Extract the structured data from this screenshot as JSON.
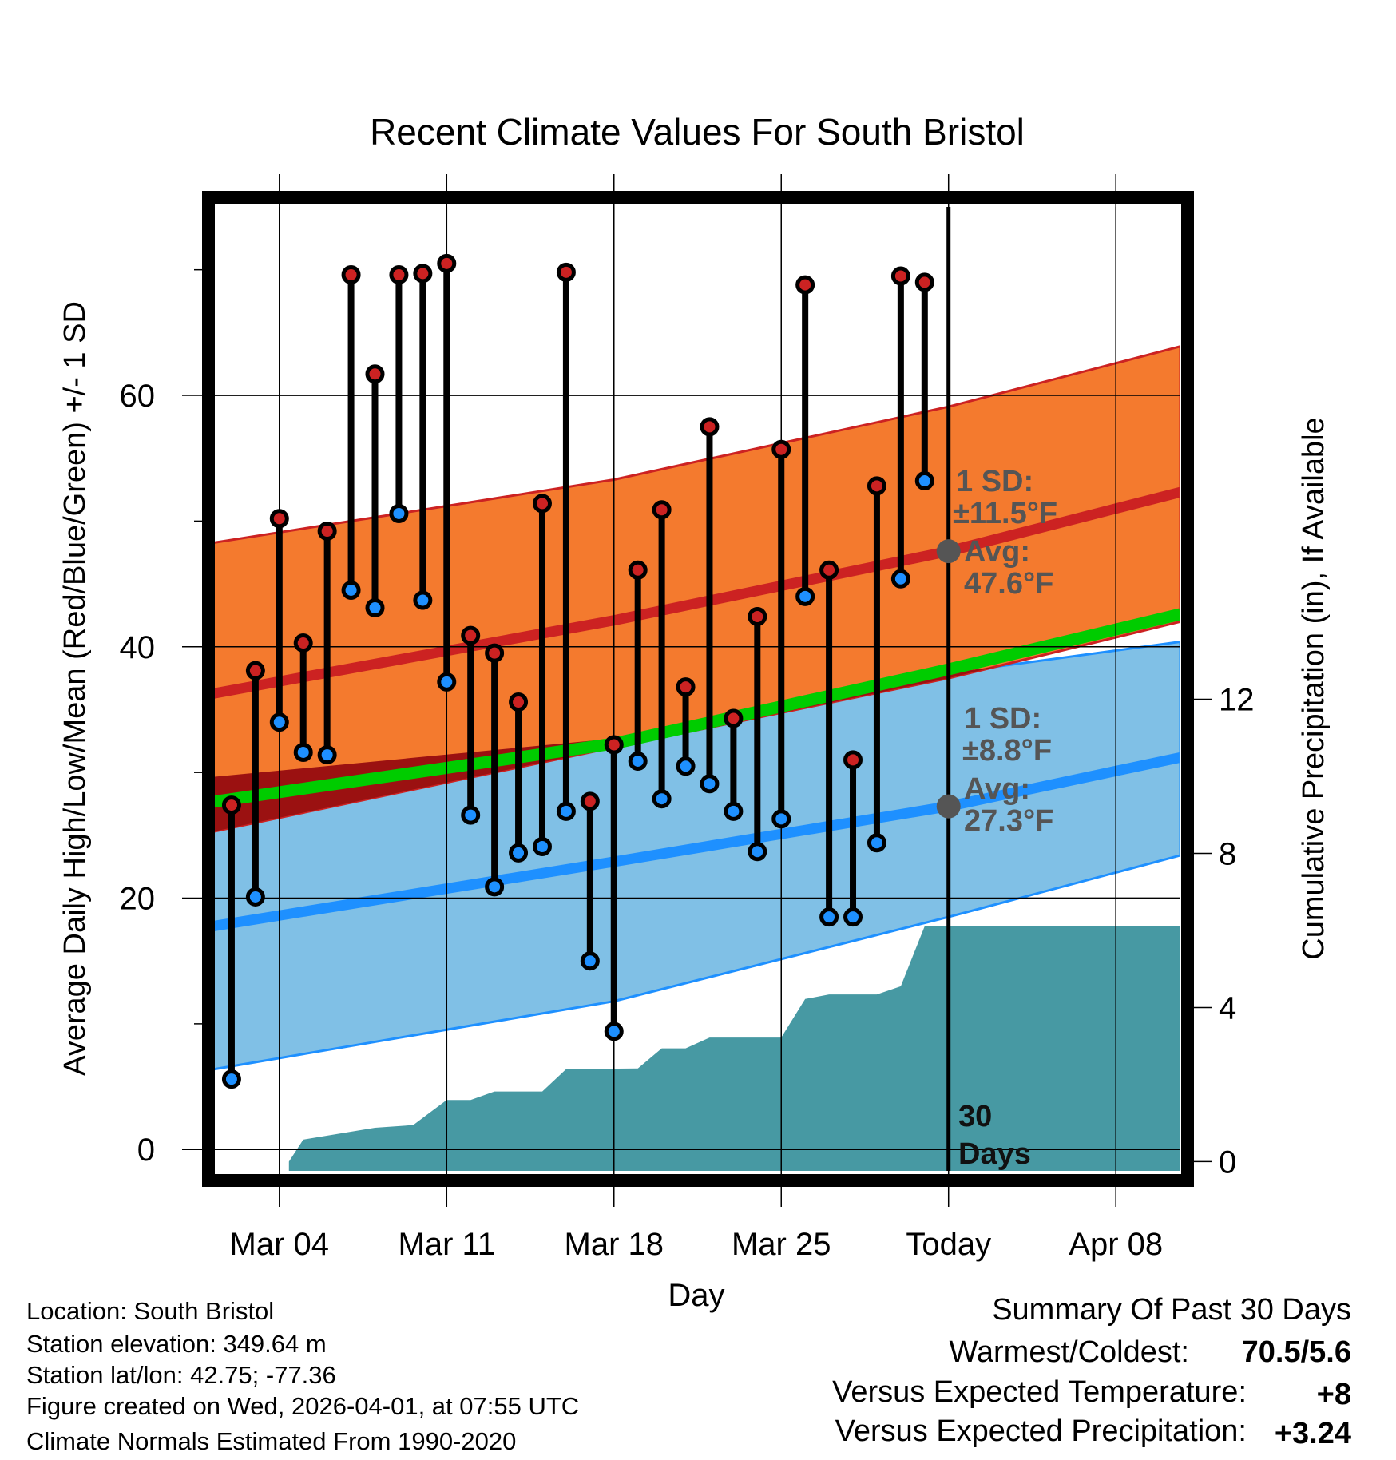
{
  "chart_data": {
    "type": "line",
    "title": "Recent Climate Values For South Bristol",
    "xlabel": "Day",
    "ylabel": "Average Daily High/Low/Mean (Red/Blue/Green) +/- 1 SD",
    "y2label": "Cumulative Precipitation (in), If Available",
    "xlim_days_since_mar01": [
      0.3,
      40.7
    ],
    "ylim": [
      -1.7,
      75
    ],
    "y2lim": [
      -0.24,
      24.78
    ],
    "x_ticks": [
      {
        "day": 3,
        "label": "Mar 04"
      },
      {
        "day": 10,
        "label": "Mar 11"
      },
      {
        "day": 17,
        "label": "Mar 18"
      },
      {
        "day": 24,
        "label": "Mar 25"
      },
      {
        "day": 31,
        "label": "Today"
      },
      {
        "day": 38,
        "label": "Apr 08"
      }
    ],
    "y_ticks": [
      0,
      20,
      40,
      60
    ],
    "y_minor_ticks": [
      10,
      30,
      50,
      70
    ],
    "y2_ticks": [
      0,
      4,
      8,
      12
    ],
    "grid": true,
    "colors": {
      "high_band": "#F47A2E",
      "high_mean": "#CC2222",
      "low_band": "#80C0E6",
      "low_mean": "#1E90FF",
      "overlap": "#9B1111",
      "mean": "#00CC00",
      "precip": "#4799A3",
      "annotation": "#555555"
    },
    "normals": {
      "days": [
        0,
        17,
        31,
        40.7
      ],
      "high_upper": [
        48.2,
        53.3,
        59.1,
        63.9
      ],
      "high_mean": [
        36.2,
        42.1,
        47.6,
        52.3
      ],
      "high_lower": [
        25.2,
        32.0,
        37.5,
        42.0
      ],
      "mean": [
        27.6,
        32.3,
        38.2,
        42.6
      ],
      "low_upper": [
        29.6,
        32.7,
        37.9,
        40.4
      ],
      "low_mean": [
        17.7,
        22.9,
        27.3,
        31.2
      ],
      "low_lower": [
        6.3,
        11.8,
        18.5,
        23.4
      ]
    },
    "daily": [
      {
        "date": "Mar 02",
        "high": 27.4,
        "low": 5.6
      },
      {
        "date": "Mar 03",
        "high": 38.1,
        "low": 20.1
      },
      {
        "date": "Mar 04",
        "high": 50.2,
        "low": 34.0
      },
      {
        "date": "Mar 05",
        "high": 40.3,
        "low": 31.6
      },
      {
        "date": "Mar 06",
        "high": 49.2,
        "low": 31.4
      },
      {
        "date": "Mar 07",
        "high": 69.6,
        "low": 44.5
      },
      {
        "date": "Mar 08",
        "high": 61.7,
        "low": 43.1
      },
      {
        "date": "Mar 09",
        "high": 69.6,
        "low": 50.6
      },
      {
        "date": "Mar 10",
        "high": 69.7,
        "low": 43.7
      },
      {
        "date": "Mar 11",
        "high": 70.5,
        "low": 37.2
      },
      {
        "date": "Mar 12",
        "high": 40.9,
        "low": 26.6
      },
      {
        "date": "Mar 13",
        "high": 39.5,
        "low": 20.9
      },
      {
        "date": "Mar 14",
        "high": 35.6,
        "low": 23.6
      },
      {
        "date": "Mar 15",
        "high": 51.4,
        "low": 24.1
      },
      {
        "date": "Mar 16",
        "high": 69.8,
        "low": 26.9
      },
      {
        "date": "Mar 17",
        "high": 27.7,
        "low": 15.0
      },
      {
        "date": "Mar 18",
        "high": 32.2,
        "low": 9.4
      },
      {
        "date": "Mar 19",
        "high": 46.1,
        "low": 30.9
      },
      {
        "date": "Mar 20",
        "high": 50.9,
        "low": 27.9
      },
      {
        "date": "Mar 21",
        "high": 36.8,
        "low": 30.5
      },
      {
        "date": "Mar 22",
        "high": 57.5,
        "low": 29.1
      },
      {
        "date": "Mar 23",
        "high": 34.3,
        "low": 26.9
      },
      {
        "date": "Mar 24",
        "high": 42.4,
        "low": 23.7
      },
      {
        "date": "Mar 25",
        "high": 55.7,
        "low": 26.3
      },
      {
        "date": "Mar 26",
        "high": 68.8,
        "low": 44.0
      },
      {
        "date": "Mar 27",
        "high": 46.1,
        "low": 18.5
      },
      {
        "date": "Mar 28",
        "high": 31.0,
        "low": 18.5
      },
      {
        "date": "Mar 29",
        "high": 52.8,
        "low": 24.4
      },
      {
        "date": "Mar 30",
        "high": 69.5,
        "low": 45.4
      },
      {
        "date": "Mar 31",
        "high": 69.0,
        "low": 53.2
      }
    ],
    "precip_cumulative": [
      [
        3.4,
        0
      ],
      [
        4,
        0.57
      ],
      [
        7,
        0.88
      ],
      [
        8.6,
        0.95
      ],
      [
        10,
        1.6
      ],
      [
        11,
        1.6
      ],
      [
        12,
        1.82
      ],
      [
        14,
        1.82
      ],
      [
        15,
        2.4
      ],
      [
        18,
        2.42
      ],
      [
        19,
        2.94
      ],
      [
        20,
        2.94
      ],
      [
        21,
        3.22
      ],
      [
        24,
        3.22
      ],
      [
        25,
        4.22
      ],
      [
        26,
        4.34
      ],
      [
        28,
        4.34
      ],
      [
        29,
        4.55
      ],
      [
        30,
        6.11
      ],
      [
        40.7,
        6.11
      ]
    ],
    "today_day": 31,
    "annotations": {
      "high_sd_label": "1 SD:",
      "high_sd_value": "±11.5°F",
      "high_avg_label": "Avg:",
      "high_avg_value": "47.6°F",
      "high_avg": 47.6,
      "low_sd_label": "1 SD:",
      "low_sd_value": "±8.8°F",
      "low_avg_label": "Avg:",
      "low_avg_value": "27.3°F",
      "low_avg": 27.3,
      "period_line1": "30",
      "period_line2": "Days"
    }
  },
  "info": {
    "location": "Location: South Bristol",
    "elevation": "Station elevation: 349.64 m",
    "latlon": "Station lat/lon: 42.75; -77.36",
    "created": "Figure created on Wed, 2026-04-01, at 07:55 UTC",
    "normals": "Climate Normals Estimated From 1990-2020"
  },
  "summary": {
    "title": "Summary Of Past 30 Days",
    "warmest_coldest_label": "Warmest/Coldest:",
    "warmest_coldest_value": "70.5/5.6",
    "temp_label": "Versus Expected Temperature:",
    "temp_value": "+8",
    "temp_color": "#CC2222",
    "precip_label": "Versus Expected Precipitation:",
    "precip_value": "+3.24",
    "precip_color": "#22BB22"
  }
}
